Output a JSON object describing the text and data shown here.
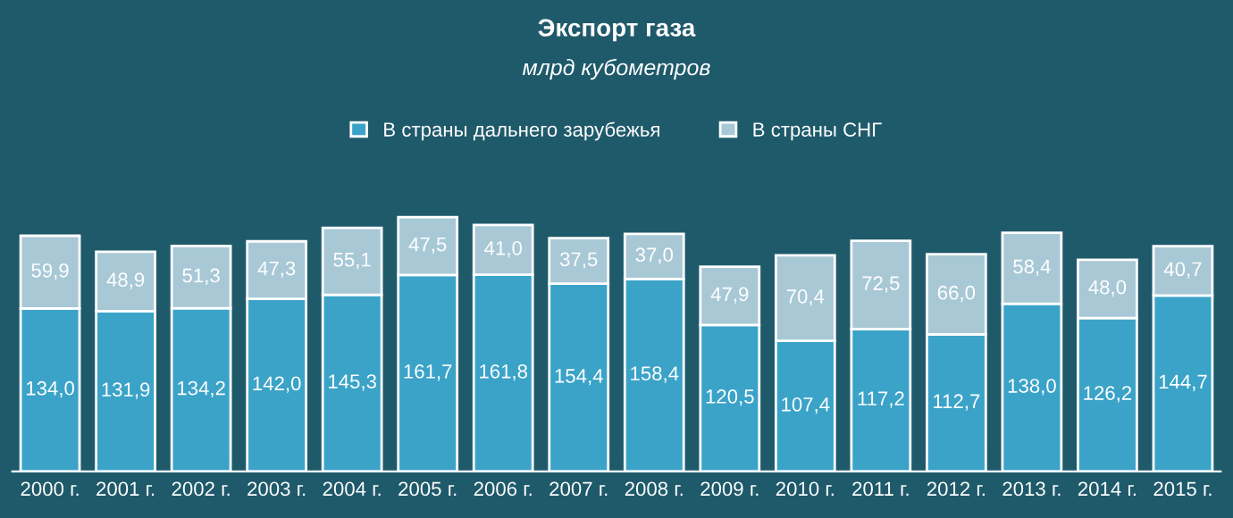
{
  "chart_data": {
    "type": "bar",
    "title": "Экспорт газа",
    "subtitle": "млрд кубометров",
    "categories": [
      "2000 г.",
      "2001 г.",
      "2002 г.",
      "2003 г.",
      "2004 г.",
      "2005 г.",
      "2006 г.",
      "2007 г.",
      "2008 г.",
      "2009 г.",
      "2010 г.",
      "2011 г.",
      "2012 г.",
      "2013 г.",
      "2014 г.",
      "2015 г."
    ],
    "stacked": true,
    "legend": "top",
    "series": [
      {
        "name": "В страны дальнего зарубежья",
        "color": "#3ba3c8",
        "values": [
          134.0,
          131.9,
          134.2,
          142.0,
          145.3,
          161.7,
          161.8,
          154.4,
          158.4,
          120.5,
          107.4,
          117.2,
          112.7,
          138.0,
          126.2,
          144.7
        ],
        "value_labels": [
          "134,0",
          "131,9",
          "134,2",
          "142,0",
          "145,3",
          "161,7",
          "161,8",
          "154,4",
          "158,4",
          "120,5",
          "107,4",
          "117,2",
          "112,7",
          "138,0",
          "126,2",
          "144,7"
        ]
      },
      {
        "name": "В страны СНГ",
        "color": "#a8c8d6",
        "values": [
          59.9,
          48.9,
          51.3,
          47.3,
          55.1,
          47.5,
          41.0,
          37.5,
          37.0,
          47.9,
          70.4,
          72.5,
          66.0,
          58.4,
          48.0,
          40.7
        ],
        "value_labels": [
          "59,9",
          "48,9",
          "51,3",
          "47,3",
          "55,1",
          "47,5",
          "41,0",
          "37,5",
          "37,0",
          "47,9",
          "70,4",
          "72,5",
          "66,0",
          "58,4",
          "48,0",
          "40,7"
        ]
      }
    ]
  }
}
